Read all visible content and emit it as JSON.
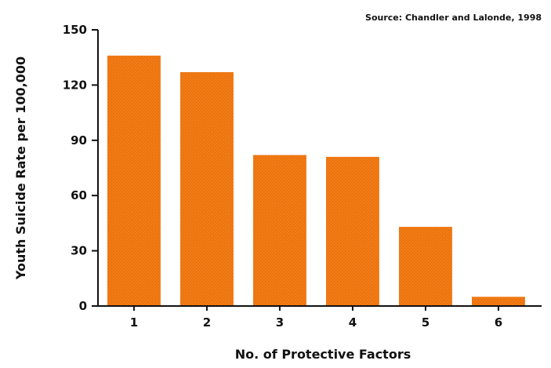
{
  "chart_data": {
    "type": "bar",
    "source": "Source: Chandler and Lalonde, 1998",
    "categories": [
      "1",
      "2",
      "3",
      "4",
      "5",
      "6"
    ],
    "values": [
      136,
      127,
      82,
      81,
      43,
      5
    ],
    "xlabel": "No. of Protective Factors",
    "ylabel": "Youth Suicide Rate per 100,000",
    "ylim": [
      0,
      150
    ],
    "yticks": [
      0,
      30,
      60,
      90,
      120,
      150
    ],
    "grid": false,
    "colors": {
      "bar": "#F07A14",
      "axis": "#111111"
    }
  }
}
